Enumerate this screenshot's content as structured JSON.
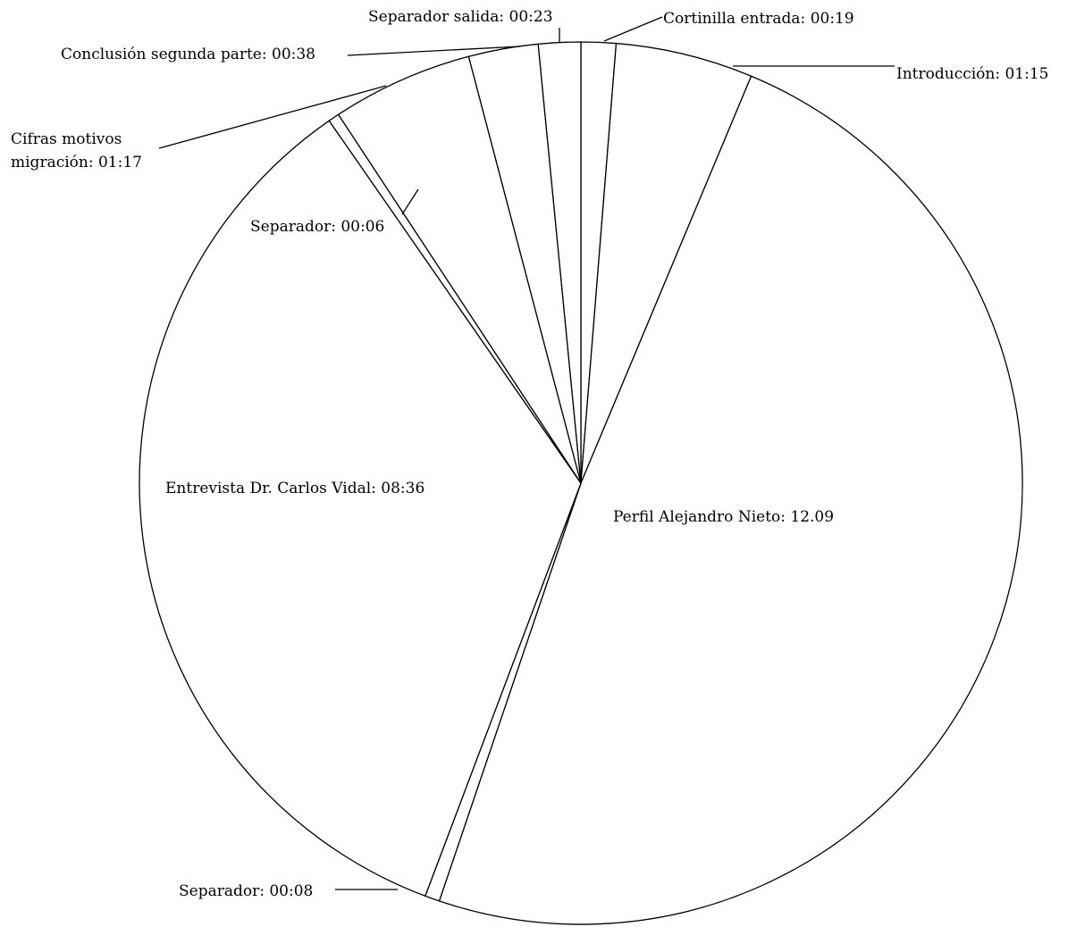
{
  "chart_data": {
    "type": "pie",
    "title": "",
    "slices": [
      {
        "label": "Cortinilla entrada: 00:19",
        "value": 19
      },
      {
        "label": "Introducción: 01:15",
        "value": 75
      },
      {
        "label": "Perfil Alejandro Nieto: 12.09",
        "value": 729
      },
      {
        "label": "Separador: 00:08",
        "value": 8
      },
      {
        "label": "Entrevista Dr. Carlos Vidal:   08:36",
        "value": 516
      },
      {
        "label": "Separador: 00:06",
        "value": 6
      },
      {
        "label": "Cifras motivos migración: 01:17",
        "value": 77
      },
      {
        "label": "Conclusión segunda parte: 00:38",
        "value": 38
      },
      {
        "label": "Separador salida: 00:23",
        "value": 23
      }
    ],
    "colors": {
      "fill": "#ffffff",
      "stroke": "#000000"
    }
  }
}
